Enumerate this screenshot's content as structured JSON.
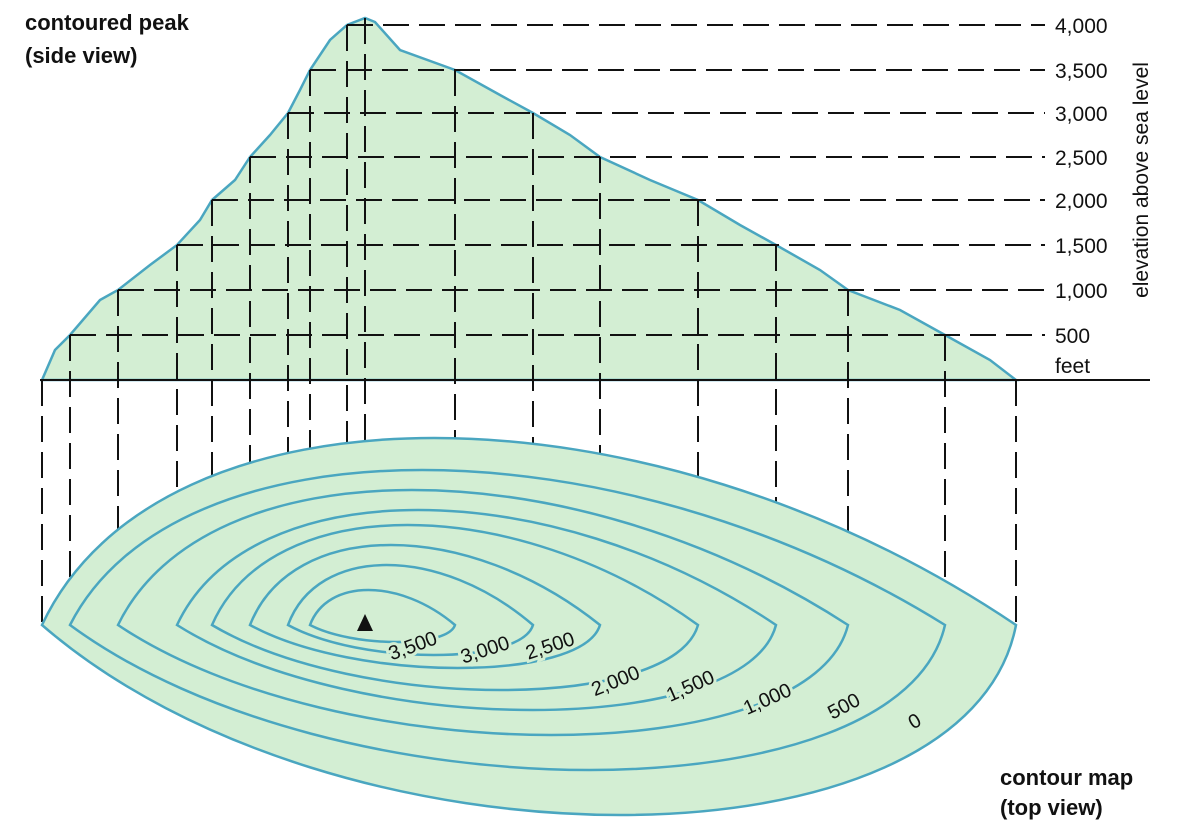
{
  "side_view": {
    "title_line1": "contoured peak",
    "title_line2": "(side view)",
    "axis_label": "elevation above sea level",
    "unit": "feet",
    "elevations": [
      "4,000",
      "3,500",
      "3,000",
      "2,500",
      "2,000",
      "1,500",
      "1,000",
      "500"
    ]
  },
  "top_view": {
    "title_line1": "contour map",
    "title_line2": "(top view)",
    "contour_labels": [
      "3,500",
      "3,000",
      "2,500",
      "2,000",
      "1,500",
      "1,000",
      "500",
      "0"
    ]
  }
}
